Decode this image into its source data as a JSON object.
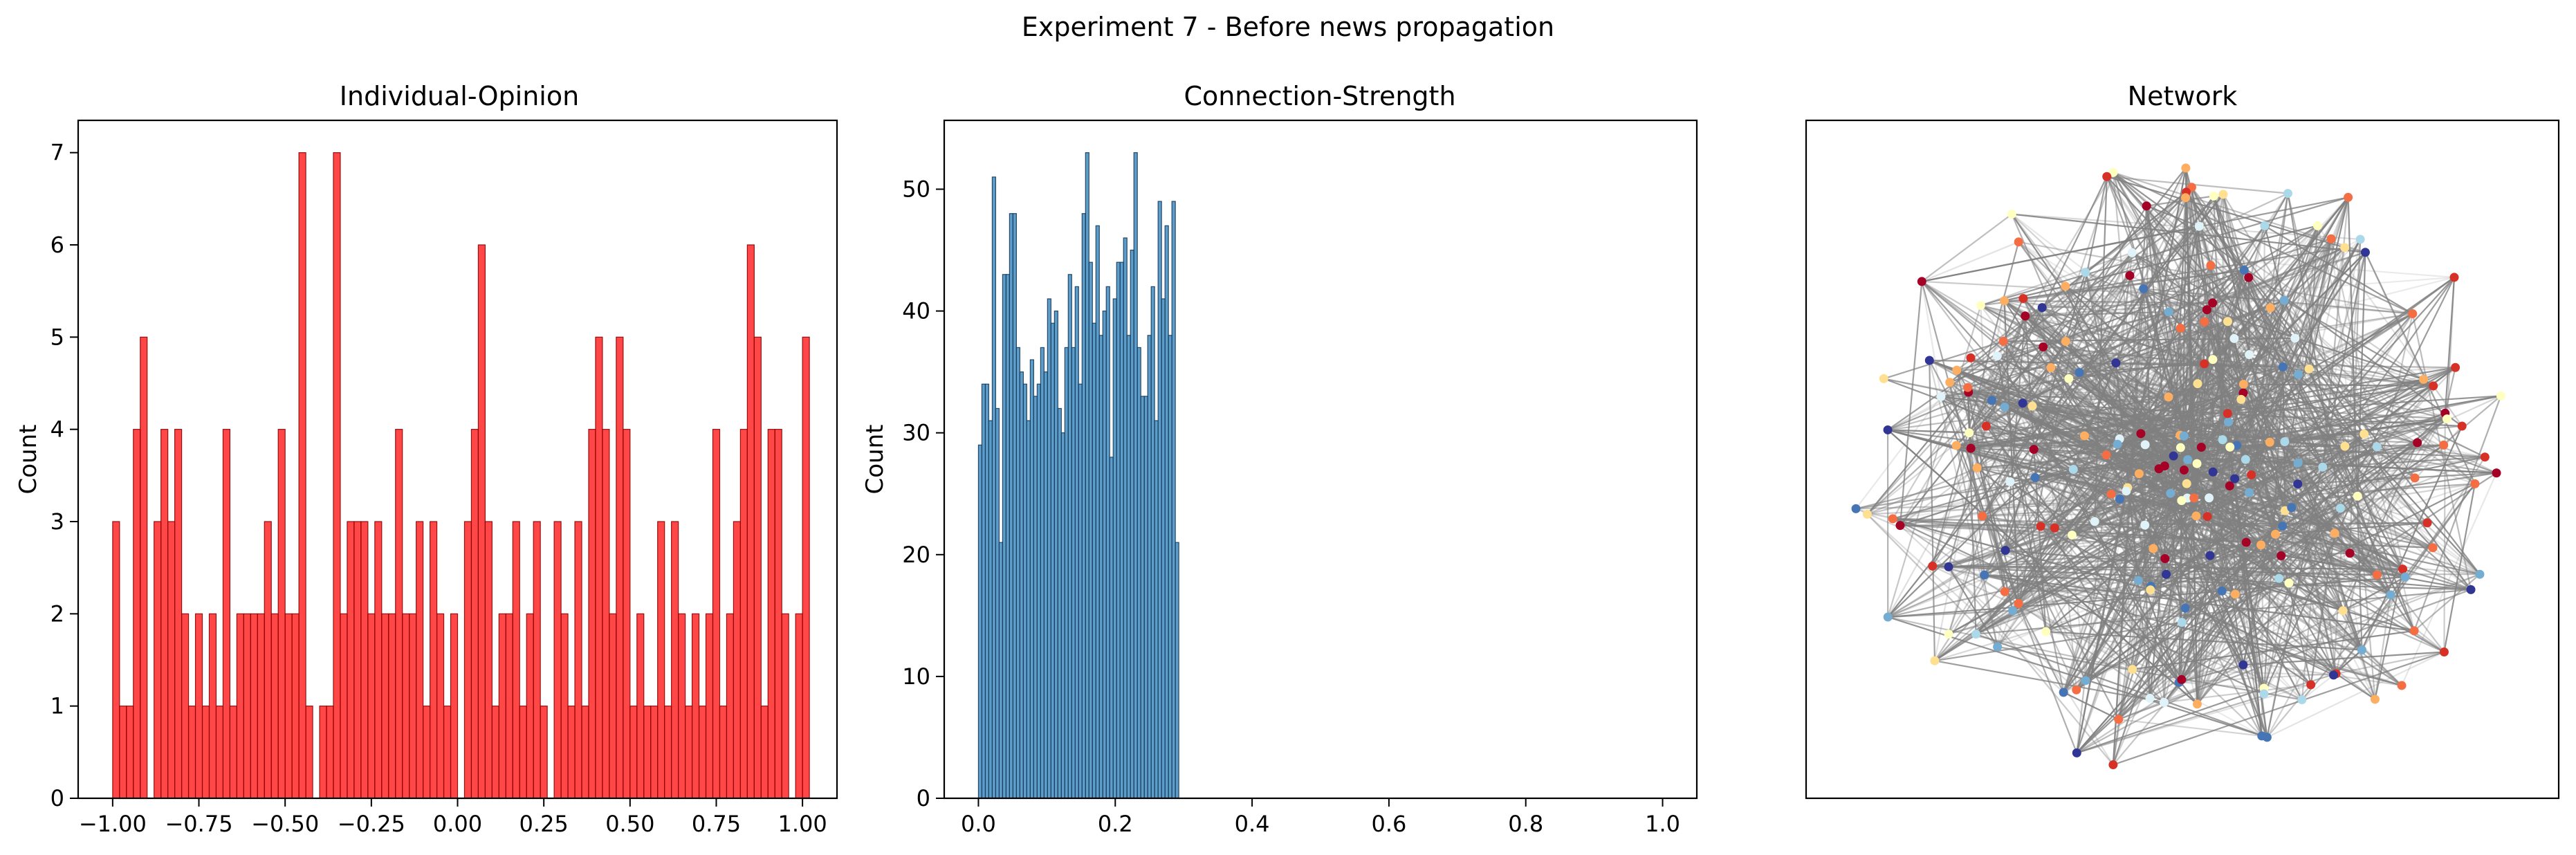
{
  "figure": {
    "suptitle": "Experiment 7 - Before news propagation"
  },
  "chart_data": [
    {
      "type": "bar",
      "title": "Individual-Opinion",
      "xlabel": "",
      "ylabel": "Count",
      "xlim": [
        -1.1,
        1.1
      ],
      "ylim": [
        0,
        7.35
      ],
      "xticks": [
        -1.0,
        -0.75,
        -0.5,
        -0.25,
        0.0,
        0.25,
        0.5,
        0.75,
        1.0
      ],
      "xtick_labels": [
        "−1.00",
        "−0.75",
        "−0.50",
        "−0.25",
        "0.00",
        "0.25",
        "0.50",
        "0.75",
        "1.00"
      ],
      "yticks": [
        0,
        1,
        2,
        3,
        4,
        5,
        6,
        7
      ],
      "bin_start": -1.0,
      "bin_width": 0.02,
      "values": [
        3,
        1,
        1,
        4,
        5,
        0,
        3,
        4,
        3,
        4,
        2,
        1,
        2,
        1,
        2,
        1,
        4,
        1,
        2,
        2,
        2,
        2,
        3,
        2,
        4,
        2,
        2,
        7,
        1,
        0,
        1,
        1,
        7,
        2,
        3,
        3,
        3,
        2,
        3,
        2,
        2,
        4,
        2,
        2,
        3,
        1,
        3,
        2,
        1,
        2,
        0,
        3,
        4,
        6,
        3,
        1,
        2,
        2,
        3,
        1,
        2,
        3,
        1,
        0,
        3,
        2,
        1,
        3,
        1,
        4,
        5,
        4,
        2,
        5,
        4,
        1,
        2,
        1,
        1,
        3,
        1,
        3,
        2,
        1,
        2,
        1,
        2,
        4,
        1,
        2,
        3,
        4,
        6,
        5,
        1,
        4,
        4,
        2,
        0,
        2,
        5
      ]
    },
    {
      "type": "bar",
      "title": "Connection-Strength",
      "xlabel": "",
      "ylabel": "Count",
      "xlim": [
        -0.05,
        1.05
      ],
      "ylim": [
        0,
        55.65
      ],
      "xticks": [
        0.0,
        0.2,
        0.4,
        0.6,
        0.8,
        1.0
      ],
      "xtick_labels": [
        "0.0",
        "0.2",
        "0.4",
        "0.6",
        "0.8",
        "1.0"
      ],
      "yticks": [
        0,
        10,
        20,
        30,
        40,
        50
      ],
      "bin_start": 0.0,
      "bin_width": 0.00505,
      "values": [
        29,
        34,
        34,
        31,
        51,
        32,
        21,
        43,
        43,
        48,
        48,
        37,
        35,
        34,
        31,
        36,
        33,
        34,
        37,
        35,
        41,
        39,
        40,
        32,
        30,
        37,
        43,
        37,
        42,
        34,
        48,
        53,
        44,
        39,
        47,
        38,
        40,
        42,
        28,
        41,
        44,
        44,
        46,
        38,
        45,
        53,
        37,
        33,
        33,
        38,
        42,
        31,
        49,
        41,
        47,
        38,
        49,
        21
      ]
    },
    {
      "type": "network",
      "title": "Network",
      "node_colors": [
        "#313695",
        "#4575b4",
        "#74add1",
        "#abd9e9",
        "#e0f3f8",
        "#ffffbf",
        "#fee090",
        "#fdae61",
        "#f46d43",
        "#d73027",
        "#a50026"
      ],
      "edge_color": "#808080"
    }
  ],
  "style": {
    "hist1_color": "#ff0000",
    "hist2_color": "#1f77b4",
    "edge_color": "#808080"
  }
}
